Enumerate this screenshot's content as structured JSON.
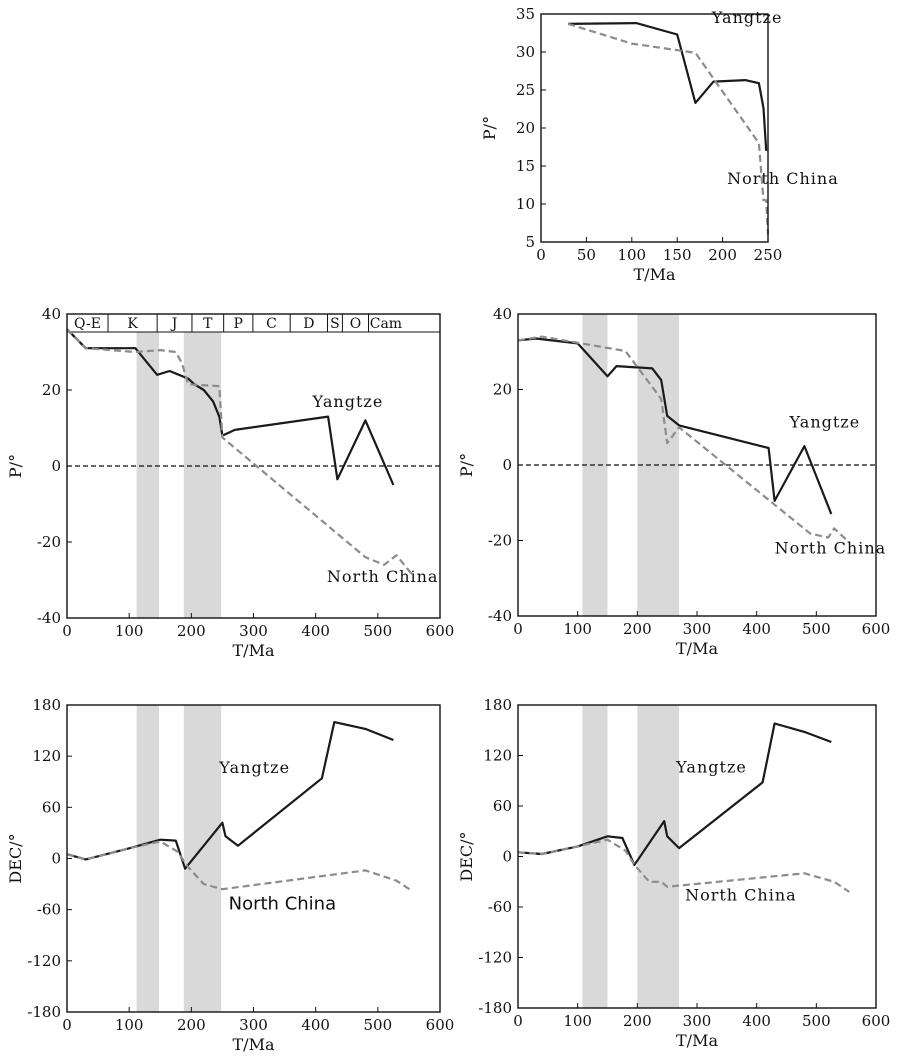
{
  "colors": {
    "yangtze": "#1a1a1a",
    "north_china": "#8c8c8c",
    "shade": "#d9d9d9",
    "zero_line": "#111111"
  },
  "periods": [
    "Q-E",
    "K",
    "J",
    "T",
    "P",
    "C",
    "D",
    "S",
    "O",
    "Cam"
  ],
  "chart_data": [
    {
      "id": "top",
      "type": "line",
      "xlabel": "T/Ma",
      "ylabel": "P/°",
      "xlim": [
        0,
        250
      ],
      "ylim": [
        5,
        35
      ],
      "xticks": [
        0,
        50,
        100,
        150,
        200,
        250
      ],
      "yticks": [
        5,
        10,
        15,
        20,
        25,
        30,
        35
      ],
      "zero_line": false,
      "shade_bands": [],
      "series": [
        {
          "name": "Yangtze",
          "style": "solid",
          "x": [
            30,
            105,
            150,
            170,
            190,
            225,
            240,
            245,
            248
          ],
          "y": [
            33.7,
            33.8,
            32.3,
            23.3,
            26.1,
            26.3,
            25.9,
            22.6,
            17.0
          ]
        },
        {
          "name": "North China",
          "style": "dashed",
          "x": [
            30,
            100,
            170,
            240,
            245,
            248,
            250
          ],
          "y": [
            33.7,
            31.1,
            29.9,
            18.0,
            10.5,
            10.5,
            6.0
          ]
        }
      ],
      "labels": [
        {
          "series": "Yangtze",
          "text": "Yangtze",
          "x": 188,
          "y": 33.8
        },
        {
          "series": "North China",
          "text": "North China",
          "x": 205,
          "y": 12.6
        }
      ]
    },
    {
      "id": "middle-left",
      "type": "line",
      "xlabel": "T/Ma",
      "ylabel": "P/°",
      "xlim": [
        0,
        600
      ],
      "ylim": [
        -40,
        40
      ],
      "xticks": [
        0,
        100,
        200,
        300,
        400,
        500,
        600
      ],
      "yticks": [
        -40,
        -20,
        0,
        20,
        40
      ],
      "zero_line": true,
      "shade_bands": [
        [
          112,
          148
        ],
        [
          188,
          248
        ]
      ],
      "period_bar": true,
      "series": [
        {
          "name": "Yangtze",
          "style": "solid",
          "x": [
            0,
            30,
            110,
            145,
            165,
            180,
            195,
            205,
            220,
            235,
            245,
            250,
            270,
            420,
            435,
            480,
            525
          ],
          "y": [
            36,
            31,
            31,
            24,
            25,
            24,
            23,
            21.5,
            20,
            17,
            13,
            8,
            9.5,
            13,
            -3.5,
            12,
            -5
          ]
        },
        {
          "name": "North China",
          "style": "dashed",
          "x": [
            0,
            30,
            110,
            150,
            175,
            185,
            195,
            245,
            250,
            480,
            510,
            530,
            555
          ],
          "y": [
            36,
            31,
            30,
            30.5,
            30,
            27,
            21.5,
            21,
            7.5,
            -24,
            -26,
            -23.5,
            -28.5
          ]
        }
      ],
      "labels": [
        {
          "series": "Yangtze",
          "text": "Yangtze",
          "x": 395,
          "y": 15.5
        },
        {
          "series": "North China",
          "text": "North China",
          "x": 418,
          "y": -30.5
        }
      ]
    },
    {
      "id": "middle-right",
      "type": "line",
      "xlabel": "T/Ma",
      "ylabel": "P/°",
      "xlim": [
        0,
        600
      ],
      "ylim": [
        -40,
        40
      ],
      "xticks": [
        0,
        100,
        200,
        300,
        400,
        500,
        600
      ],
      "yticks": [
        -40,
        -20,
        0,
        20,
        40
      ],
      "zero_line": true,
      "shade_bands": [
        [
          108,
          150
        ],
        [
          200,
          270
        ]
      ],
      "series": [
        {
          "name": "Yangtze",
          "style": "solid",
          "x": [
            0,
            30,
            100,
            150,
            165,
            225,
            240,
            250,
            270,
            420,
            430,
            480,
            525
          ],
          "y": [
            33,
            33.5,
            32.2,
            23.5,
            26.2,
            25.6,
            22.5,
            13,
            10.5,
            4.5,
            -9.5,
            5,
            -13
          ]
        },
        {
          "name": "North China",
          "style": "dashed",
          "x": [
            0,
            40,
            180,
            240,
            250,
            270,
            490,
            520,
            530,
            555
          ],
          "y": [
            33,
            34,
            30.2,
            17.5,
            5.8,
            10,
            -18.2,
            -19.2,
            -16.8,
            -20.5
          ]
        }
      ],
      "labels": [
        {
          "series": "Yangtze",
          "text": "Yangtze",
          "x": 455,
          "y": 10
        },
        {
          "series": "North China",
          "text": "North China",
          "x": 430,
          "y": -23.5
        }
      ]
    },
    {
      "id": "bottom-left",
      "type": "line",
      "xlabel": "T/Ma",
      "ylabel": "DEC/°",
      "xlim": [
        0,
        600
      ],
      "ylim": [
        -180,
        180
      ],
      "xticks": [
        0,
        100,
        200,
        300,
        400,
        500,
        600
      ],
      "yticks": [
        -180,
        -120,
        -60,
        0,
        60,
        120,
        180
      ],
      "zero_line": false,
      "shade_bands": [
        [
          112,
          148
        ],
        [
          188,
          248
        ]
      ],
      "series": [
        {
          "name": "Yangtze",
          "style": "solid",
          "x": [
            0,
            30,
            100,
            150,
            175,
            190,
            250,
            255,
            275,
            410,
            430,
            480,
            525
          ],
          "y": [
            5,
            -1,
            12,
            22,
            21,
            -12,
            42,
            26,
            15,
            94,
            160,
            152,
            139
          ]
        },
        {
          "name": "North China",
          "style": "dashed",
          "x": [
            0,
            30,
            100,
            150,
            180,
            190,
            210,
            220,
            250,
            480,
            530,
            555
          ],
          "y": [
            5,
            -1,
            12,
            20,
            7,
            -6,
            -22,
            -30,
            -36,
            -14,
            -26,
            -38
          ]
        }
      ],
      "labels": [
        {
          "series": "Yangtze",
          "text": "Yangtze",
          "x": 245,
          "y": 100
        },
        {
          "series": "North China",
          "text": "North China",
          "x": 260,
          "y": -60,
          "font": "sans"
        }
      ]
    },
    {
      "id": "bottom-right",
      "type": "line",
      "xlabel": "T/Ma",
      "ylabel": "DEC/°",
      "xlim": [
        0,
        600
      ],
      "ylim": [
        -180,
        180
      ],
      "xticks": [
        0,
        100,
        200,
        300,
        400,
        500,
        600
      ],
      "yticks": [
        -180,
        -120,
        -60,
        0,
        60,
        120,
        180
      ],
      "zero_line": false,
      "shade_bands": [
        [
          108,
          150
        ],
        [
          200,
          270
        ]
      ],
      "series": [
        {
          "name": "Yangtze",
          "style": "solid",
          "x": [
            0,
            40,
            100,
            150,
            175,
            195,
            245,
            250,
            270,
            410,
            430,
            480,
            525
          ],
          "y": [
            5,
            3,
            12,
            24,
            22,
            -10,
            42,
            24,
            10,
            88,
            158,
            148,
            136
          ]
        },
        {
          "name": "North China",
          "style": "dashed",
          "x": [
            0,
            40,
            100,
            150,
            180,
            195,
            220,
            240,
            250,
            480,
            530,
            555
          ],
          "y": [
            5,
            3,
            12,
            20,
            7,
            -10,
            -30,
            -30,
            -36,
            -20,
            -30,
            -42
          ]
        }
      ],
      "labels": [
        {
          "series": "Yangtze",
          "text": "Yangtze",
          "x": 265,
          "y": 100
        },
        {
          "series": "North China",
          "text": "North China",
          "x": 280,
          "y": -52
        }
      ]
    }
  ]
}
